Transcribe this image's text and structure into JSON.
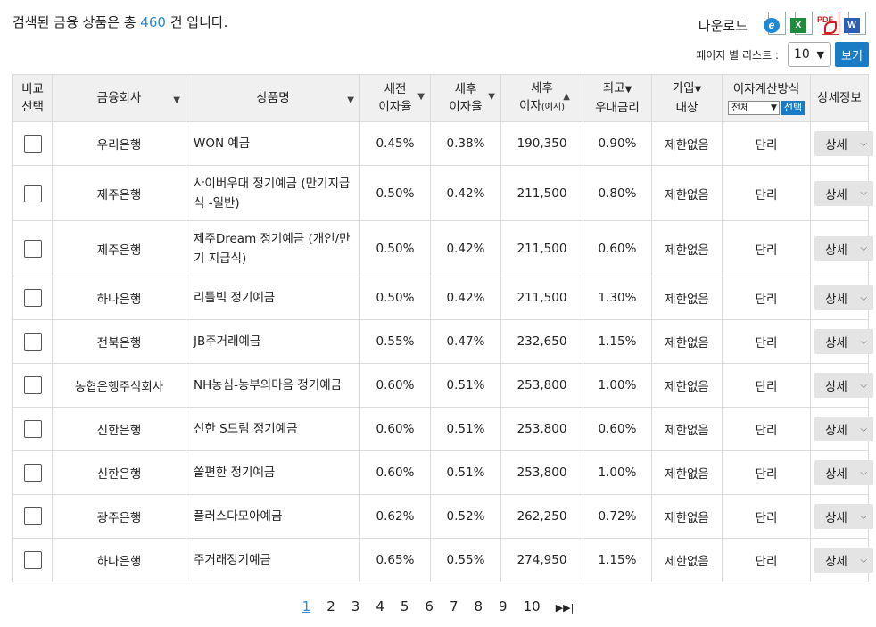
{
  "summary": {
    "prefix": "검색된 금융 상품은 총",
    "count": "460",
    "suffix": "건 입니다."
  },
  "download": {
    "label": "다운로드",
    "icons": [
      "ie-icon",
      "excel-icon",
      "pdf-icon",
      "word-icon"
    ]
  },
  "pagesize": {
    "label": "페이지 별 리스트 :",
    "value": "10",
    "button": "보기"
  },
  "headers": {
    "compare": [
      "비교",
      "선택"
    ],
    "company": "금융회사",
    "product": "상품명",
    "pre_tax": [
      "세전",
      "이자율"
    ],
    "after_tax": [
      "세후",
      "이자율"
    ],
    "after_interest": [
      "세후",
      "이자",
      "(예시)"
    ],
    "max_rate": [
      "최고",
      "우대금리"
    ],
    "target": [
      "가입",
      "대상"
    ],
    "calc": "이자계산방식",
    "calc_filter": "전체",
    "calc_button": "선택",
    "detail": "상세정보"
  },
  "rows": [
    {
      "company": "우리은행",
      "product": "WON 예금",
      "pre": "0.45%",
      "post": "0.38%",
      "interest": "190,350",
      "max": "0.90%",
      "target": "제한없음",
      "calc": "단리",
      "detail": "상세"
    },
    {
      "company": "제주은행",
      "product": "사이버우대 정기예금 (만기지급식 -일반)",
      "pre": "0.50%",
      "post": "0.42%",
      "interest": "211,500",
      "max": "0.80%",
      "target": "제한없음",
      "calc": "단리",
      "detail": "상세"
    },
    {
      "company": "제주은행",
      "product": "제주Dream 정기예금 (개인/만기 지급식)",
      "pre": "0.50%",
      "post": "0.42%",
      "interest": "211,500",
      "max": "0.60%",
      "target": "제한없음",
      "calc": "단리",
      "detail": "상세"
    },
    {
      "company": "하나은행",
      "product": "리틀빅 정기예금",
      "pre": "0.50%",
      "post": "0.42%",
      "interest": "211,500",
      "max": "1.30%",
      "target": "제한없음",
      "calc": "단리",
      "detail": "상세"
    },
    {
      "company": "전북은행",
      "product": "JB주거래예금",
      "pre": "0.55%",
      "post": "0.47%",
      "interest": "232,650",
      "max": "1.15%",
      "target": "제한없음",
      "calc": "단리",
      "detail": "상세"
    },
    {
      "company": "농협은행주식회사",
      "product": "NH농심-농부의마음 정기예금",
      "pre": "0.60%",
      "post": "0.51%",
      "interest": "253,800",
      "max": "1.00%",
      "target": "제한없음",
      "calc": "단리",
      "detail": "상세"
    },
    {
      "company": "신한은행",
      "product": "신한 S드림 정기예금",
      "pre": "0.60%",
      "post": "0.51%",
      "interest": "253,800",
      "max": "0.60%",
      "target": "제한없음",
      "calc": "단리",
      "detail": "상세"
    },
    {
      "company": "신한은행",
      "product": "쏠편한 정기예금",
      "pre": "0.60%",
      "post": "0.51%",
      "interest": "253,800",
      "max": "1.00%",
      "target": "제한없음",
      "calc": "단리",
      "detail": "상세"
    },
    {
      "company": "광주은행",
      "product": "플러스다모아예금",
      "pre": "0.62%",
      "post": "0.52%",
      "interest": "262,250",
      "max": "0.72%",
      "target": "제한없음",
      "calc": "단리",
      "detail": "상세"
    },
    {
      "company": "하나은행",
      "product": "주거래정기예금",
      "pre": "0.65%",
      "post": "0.55%",
      "interest": "274,950",
      "max": "1.15%",
      "target": "제한없음",
      "calc": "단리",
      "detail": "상세"
    }
  ],
  "pager": {
    "pages": [
      "1",
      "2",
      "3",
      "4",
      "5",
      "6",
      "7",
      "8",
      "9",
      "10"
    ],
    "current": "1",
    "next": "▶▶|"
  }
}
